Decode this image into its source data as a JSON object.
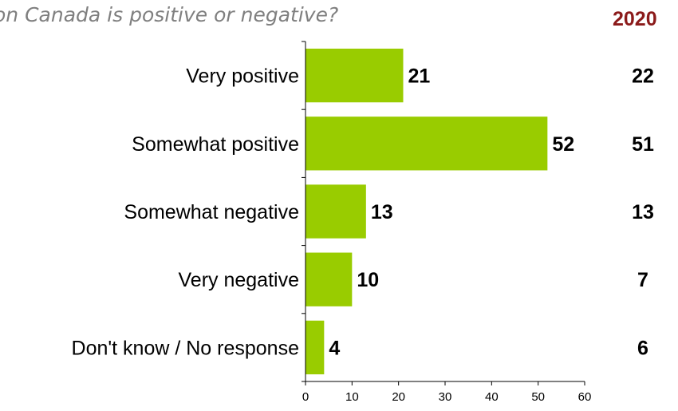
{
  "question_text": "on Canada is positive or negative?",
  "comparison_year": "2020",
  "chart_data": {
    "type": "bar",
    "orientation": "horizontal",
    "categories": [
      "Very positive",
      "Somewhat positive",
      "Somewhat negative",
      "Very negative",
      "Don't know / No response"
    ],
    "values": [
      21,
      52,
      13,
      10,
      4
    ],
    "comparison_values": [
      "22",
      "51",
      "13",
      "7",
      "6"
    ],
    "xlim": [
      0,
      60
    ],
    "xticks": [
      0,
      10,
      20,
      30,
      40,
      50,
      60
    ],
    "bar_color": "#99cc00",
    "grid": false
  }
}
